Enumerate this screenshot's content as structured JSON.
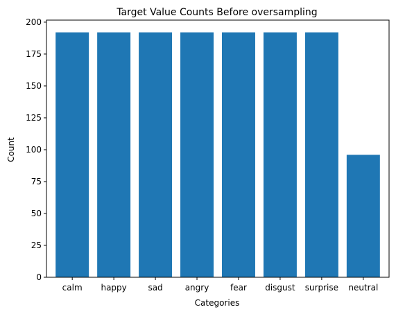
{
  "chart_data": {
    "type": "bar",
    "title": "Target Value Counts Before oversampling",
    "xlabel": "Categories",
    "ylabel": "Count",
    "categories": [
      "calm",
      "happy",
      "sad",
      "angry",
      "fear",
      "disgust",
      "surprise",
      "neutral"
    ],
    "values": [
      192,
      192,
      192,
      192,
      192,
      192,
      192,
      96
    ],
    "ylim": [
      0,
      201.6
    ],
    "yticks": [
      0,
      25,
      50,
      75,
      100,
      125,
      150,
      175,
      200
    ],
    "grid": false,
    "legend": "none",
    "bar_color": "#1f77b4"
  }
}
